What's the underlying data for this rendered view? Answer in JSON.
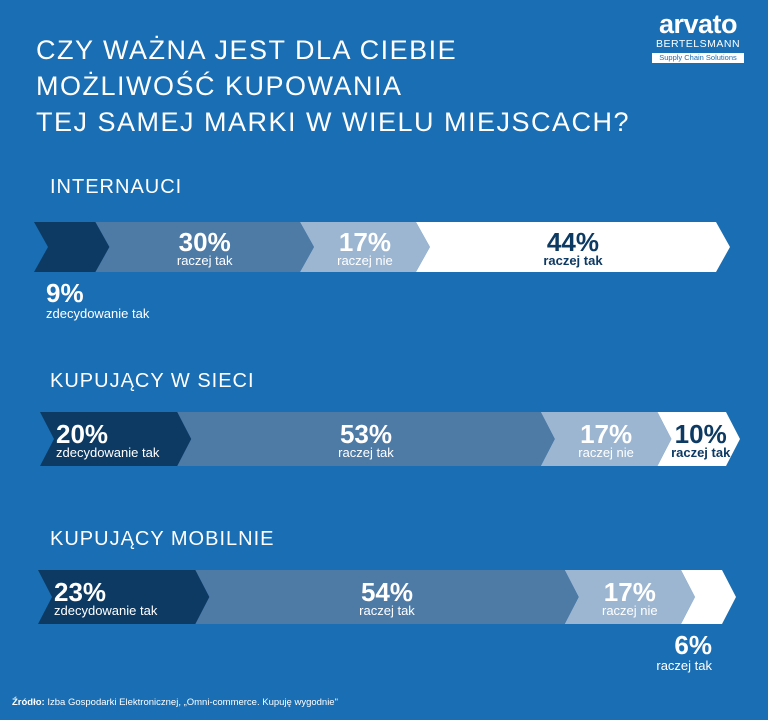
{
  "title_lines": [
    "CZY WAŻNA JEST DLA CIEBIE",
    "MOŻLIWOŚĆ KUPOWANIA",
    "TEJ SAMEJ MARKI W WIELU MIEJSCACH?"
  ],
  "logo": {
    "word": "arvato",
    "sub": "BERTELSMANN",
    "tag": "Supply Chain Solutions"
  },
  "colors": {
    "background": "#1a6eb3",
    "dark_navy": "#0d3a63",
    "slate": "#4e7aa6",
    "light_slate": "#9cb6d1",
    "white": "#ffffff"
  },
  "source": {
    "label": "Źródło:",
    "text": "Izba Gospodarki Elektronicznej, „Omni-commerce. Kupuję wygodnie\""
  },
  "chart_data": {
    "type": "bar",
    "orientation": "horizontal-stacked",
    "categories": [
      "INTERNAUCI",
      "KUPUJĄCY W SIECI",
      "KUPUJĄCY MOBILNIE"
    ],
    "series": [
      {
        "name": "zdecydowanie tak",
        "values": [
          9,
          20,
          23
        ],
        "value_labels": [
          "9%",
          "20%",
          "23%"
        ],
        "color": "#0d3a63"
      },
      {
        "name": "raczej tak",
        "values": [
          30,
          53,
          54
        ],
        "value_labels": [
          "30%",
          "53%",
          "54%"
        ],
        "color": "#4e7aa6"
      },
      {
        "name": "raczej nie",
        "values": [
          17,
          17,
          17
        ],
        "value_labels": [
          "17%",
          "17%",
          "17%"
        ],
        "color": "#9cb6d1"
      },
      {
        "name": "raczej tak",
        "values": [
          44,
          10,
          6
        ],
        "value_labels": [
          "44%",
          "10%",
          "6%"
        ],
        "color": "#ffffff"
      }
    ]
  }
}
